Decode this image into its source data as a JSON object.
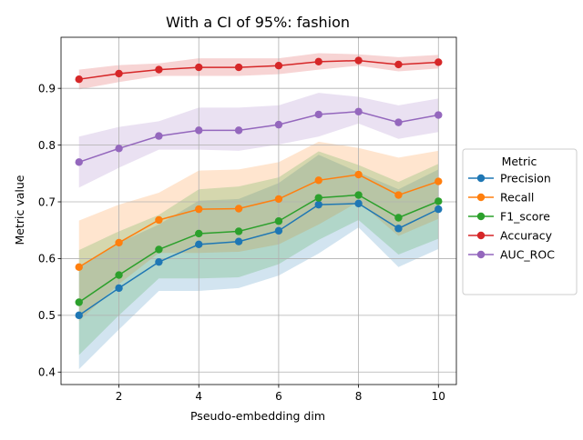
{
  "chart_data": {
    "type": "line",
    "title": "With a CI of 95%: fashion",
    "xlabel": "Pseudo-embedding dim",
    "ylabel": "Metric value",
    "xlim": [
      0.55,
      10.45
    ],
    "ylim": [
      0.378,
      0.99
    ],
    "xticks": [
      2,
      4,
      6,
      8,
      10
    ],
    "yticks": [
      0.4,
      0.5,
      0.6,
      0.7,
      0.8,
      0.9
    ],
    "grid": true,
    "legend": {
      "title": "Metric",
      "placement": "right"
    },
    "x": [
      1,
      2,
      3,
      4,
      5,
      6,
      7,
      8,
      9,
      10
    ],
    "series": [
      {
        "name": "Precision",
        "color": "#1f77b4",
        "values": [
          0.5,
          0.548,
          0.594,
          0.625,
          0.63,
          0.649,
          0.695,
          0.697,
          0.653,
          0.687
        ],
        "lower": [
          0.405,
          0.475,
          0.543,
          0.543,
          0.548,
          0.57,
          0.609,
          0.655,
          0.585,
          0.617
        ],
        "upper": [
          0.585,
          0.628,
          0.66,
          0.702,
          0.705,
          0.733,
          0.783,
          0.752,
          0.722,
          0.757
        ]
      },
      {
        "name": "Recall",
        "color": "#ff7f0e",
        "values": [
          0.585,
          0.628,
          0.668,
          0.687,
          0.688,
          0.705,
          0.738,
          0.748,
          0.712,
          0.736
        ],
        "lower": [
          0.49,
          0.555,
          0.61,
          0.61,
          0.612,
          0.625,
          0.66,
          0.7,
          0.64,
          0.67
        ],
        "upper": [
          0.667,
          0.695,
          0.716,
          0.755,
          0.757,
          0.77,
          0.806,
          0.795,
          0.778,
          0.79
        ]
      },
      {
        "name": "F1_score",
        "color": "#2ca02c",
        "values": [
          0.523,
          0.571,
          0.616,
          0.644,
          0.648,
          0.666,
          0.707,
          0.712,
          0.672,
          0.701
        ],
        "lower": [
          0.43,
          0.5,
          0.565,
          0.565,
          0.567,
          0.59,
          0.633,
          0.668,
          0.607,
          0.635
        ],
        "upper": [
          0.615,
          0.648,
          0.677,
          0.722,
          0.727,
          0.743,
          0.789,
          0.765,
          0.735,
          0.767
        ]
      },
      {
        "name": "Accuracy",
        "color": "#d62728",
        "values": [
          0.916,
          0.926,
          0.933,
          0.937,
          0.937,
          0.94,
          0.947,
          0.949,
          0.942,
          0.946
        ],
        "lower": [
          0.898,
          0.911,
          0.922,
          0.922,
          0.922,
          0.925,
          0.933,
          0.94,
          0.93,
          0.935
        ],
        "upper": [
          0.933,
          0.941,
          0.944,
          0.953,
          0.953,
          0.953,
          0.962,
          0.96,
          0.955,
          0.959
        ]
      },
      {
        "name": "AUC_ROC",
        "color": "#9467bd",
        "values": [
          0.77,
          0.794,
          0.816,
          0.826,
          0.826,
          0.836,
          0.854,
          0.859,
          0.84,
          0.853
        ],
        "lower": [
          0.725,
          0.76,
          0.792,
          0.792,
          0.79,
          0.801,
          0.815,
          0.838,
          0.811,
          0.823
        ],
        "upper": [
          0.815,
          0.832,
          0.842,
          0.866,
          0.866,
          0.87,
          0.892,
          0.885,
          0.87,
          0.882
        ]
      }
    ]
  }
}
